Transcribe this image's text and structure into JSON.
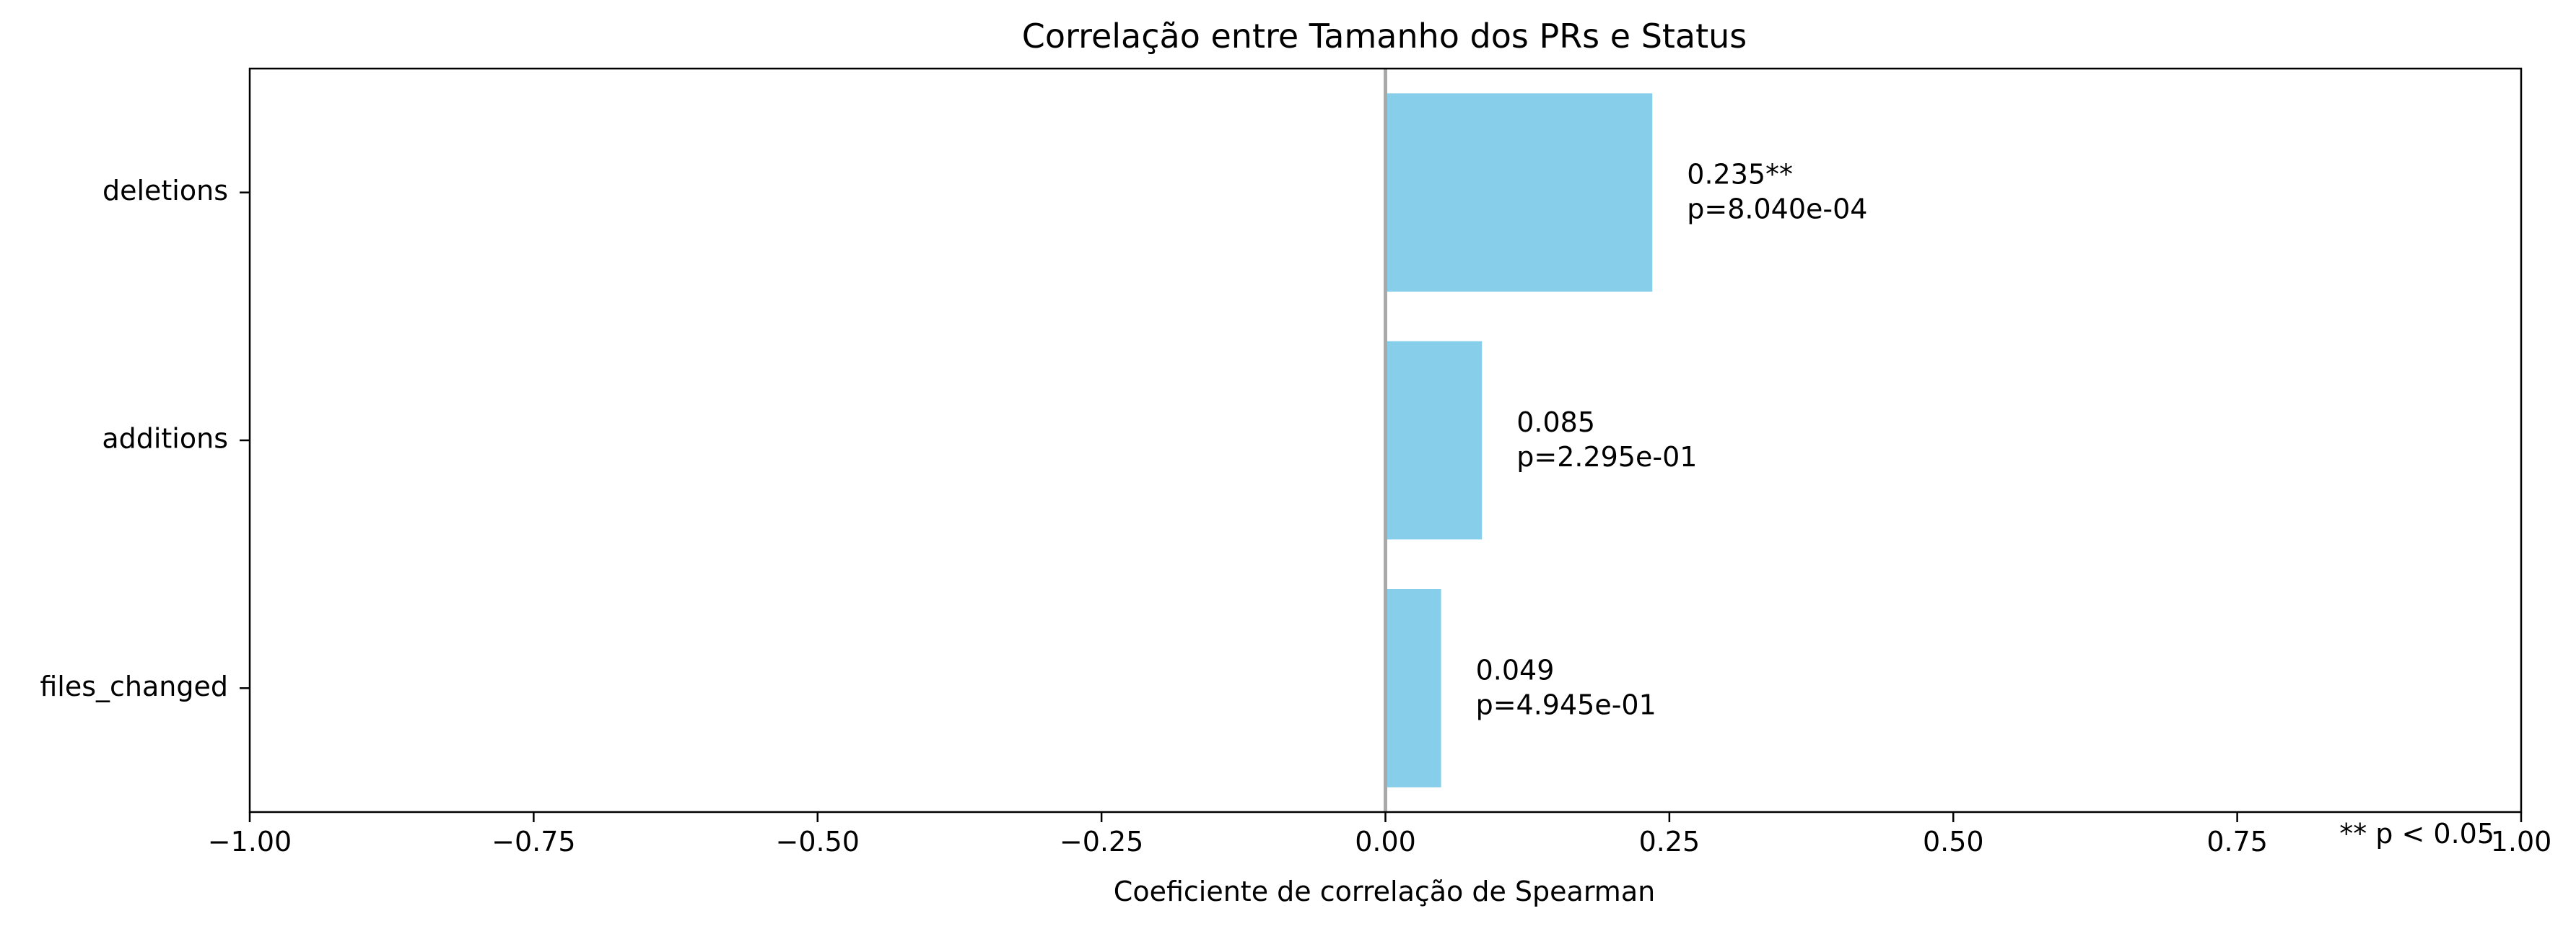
{
  "chart_data": {
    "type": "bar",
    "orientation": "horizontal",
    "title": "Correlação entre Tamanho dos PRs e Status",
    "xlabel": "Coeficiente de correlação de Spearman",
    "ylabel": "",
    "xlim": [
      -1.0,
      1.0
    ],
    "xticks": [
      -1.0,
      -0.75,
      -0.5,
      -0.25,
      0.0,
      0.25,
      0.5,
      0.75,
      1.0
    ],
    "xtick_labels": [
      "−1.00",
      "−0.75",
      "−0.50",
      "−0.25",
      "0.00",
      "0.25",
      "0.50",
      "0.75",
      "1.00"
    ],
    "categories": [
      "deletions",
      "additions",
      "files_changed"
    ],
    "values": [
      0.235,
      0.085,
      0.049
    ],
    "p_values": [
      0.000804,
      0.2295,
      0.4945
    ],
    "labels": [
      {
        "coef": "0.235**",
        "p": "p=8.040e-04"
      },
      {
        "coef": "0.085",
        "p": "p=2.295e-01"
      },
      {
        "coef": "0.049",
        "p": "p=4.945e-01"
      }
    ],
    "zero_line": true,
    "grid": false,
    "bar_color": "#87CEEB",
    "zero_line_color": "#a9a9a9",
    "footnote": "** p < 0.05"
  }
}
